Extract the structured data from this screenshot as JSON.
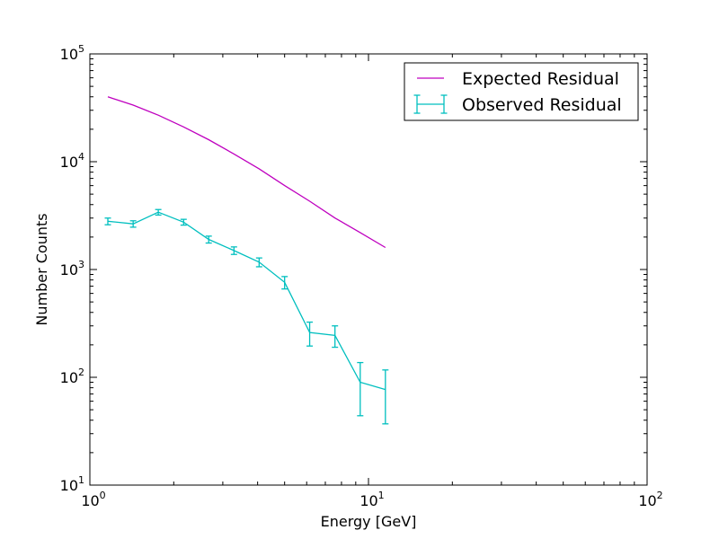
{
  "chart_data": {
    "type": "line",
    "title": "",
    "xlabel": "Energy [GeV]",
    "ylabel": "Number Counts",
    "xscale": "log",
    "yscale": "log",
    "xlim": [
      1,
      100
    ],
    "ylim": [
      10,
      100000
    ],
    "grid": false,
    "legend_position": "top-right",
    "x_ticks": [
      {
        "value": 1,
        "base": "10",
        "exp": "0"
      },
      {
        "value": 10,
        "base": "10",
        "exp": "1"
      },
      {
        "value": 100,
        "base": "10",
        "exp": "2"
      }
    ],
    "y_ticks": [
      {
        "value": 10,
        "base": "10",
        "exp": "1"
      },
      {
        "value": 100,
        "base": "10",
        "exp": "2"
      },
      {
        "value": 1000,
        "base": "10",
        "exp": "3"
      },
      {
        "value": 10000,
        "base": "10",
        "exp": "4"
      },
      {
        "value": 100000,
        "base": "10",
        "exp": "5"
      }
    ],
    "series": [
      {
        "name": "Expected Residual",
        "color": "#bf00bf",
        "style": "line",
        "x": [
          1.16,
          1.43,
          1.76,
          2.17,
          2.67,
          3.29,
          4.05,
          5.0,
          6.15,
          7.58,
          9.34,
          11.5
        ],
        "y": [
          40000,
          33500,
          27000,
          21000,
          16000,
          11800,
          8600,
          6000,
          4300,
          3000,
          2200,
          1600
        ]
      },
      {
        "name": "Observed Residual",
        "color": "#00bfbf",
        "style": "errorbar",
        "x": [
          1.16,
          1.43,
          1.76,
          2.17,
          2.67,
          3.29,
          4.05,
          5.0,
          6.15,
          7.58,
          9.34,
          11.5
        ],
        "y": [
          2800,
          2650,
          3400,
          2750,
          1900,
          1500,
          1170,
          760,
          260,
          245,
          90,
          77
        ],
        "yerr_low": [
          2600,
          2470,
          3200,
          2580,
          1760,
          1380,
          1060,
          660,
          195,
          190,
          44,
          37
        ],
        "yerr_high": [
          3000,
          2830,
          3600,
          2920,
          2040,
          1620,
          1280,
          860,
          325,
          300,
          137,
          117
        ]
      }
    ]
  }
}
